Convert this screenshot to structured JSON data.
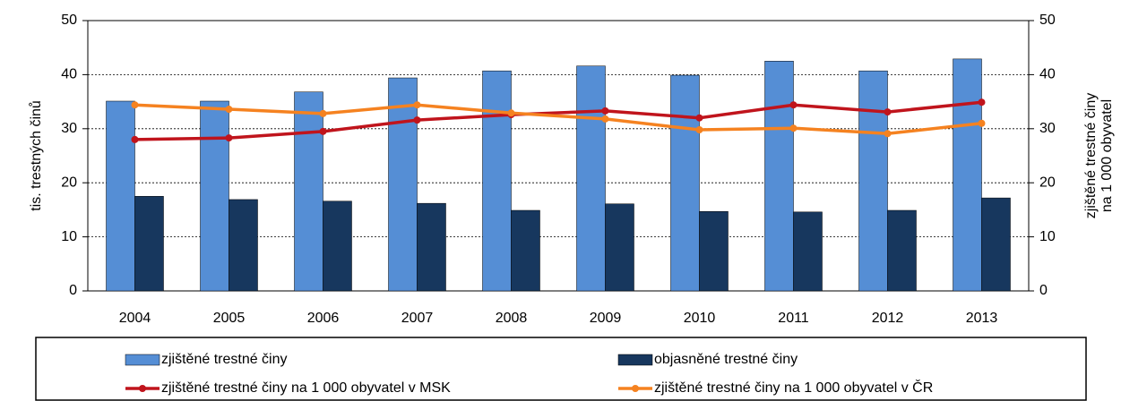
{
  "chart_data": {
    "type": "bar-line",
    "categories": [
      "2004",
      "2005",
      "2006",
      "2007",
      "2008",
      "2009",
      "2010",
      "2011",
      "2012",
      "2013"
    ],
    "series": [
      {
        "name": "zjištěné trestné činy",
        "type": "bar",
        "color": "#558ed5",
        "values": [
          35.1,
          35.1,
          36.8,
          39.4,
          40.7,
          41.6,
          39.9,
          42.5,
          40.7,
          42.9
        ]
      },
      {
        "name": "objasněné trestné činy",
        "type": "bar",
        "color": "#17375e",
        "values": [
          17.5,
          16.9,
          16.6,
          16.2,
          14.9,
          16.1,
          14.7,
          14.6,
          14.9,
          17.2
        ]
      },
      {
        "name": "zjištěné trestné činy na 1 000 obyvatel v MSK",
        "type": "line",
        "axis": "y2",
        "color": "#c0141c",
        "values": [
          28.0,
          28.3,
          29.5,
          31.6,
          32.6,
          33.3,
          32.0,
          34.4,
          33.1,
          34.9
        ]
      },
      {
        "name": "zjištěné trestné činy na 1 000 obyvatel v ČR",
        "type": "line",
        "axis": "y2",
        "color": "#f58220",
        "values": [
          34.4,
          33.6,
          32.8,
          34.4,
          32.9,
          31.8,
          29.8,
          30.1,
          29.1,
          31.0
        ]
      }
    ],
    "ylabel": "tis. trestných činů",
    "y2label": [
      "zjištěné trestné činy",
      "na 1 000 obyvatel"
    ],
    "ylim": [
      0,
      50
    ],
    "yticks": [
      0,
      10,
      20,
      30,
      40,
      50
    ],
    "y2lim": [
      0,
      50
    ],
    "y2ticks": [
      0,
      10,
      20,
      30,
      40,
      50
    ],
    "grid": true,
    "legend": "bottom"
  }
}
